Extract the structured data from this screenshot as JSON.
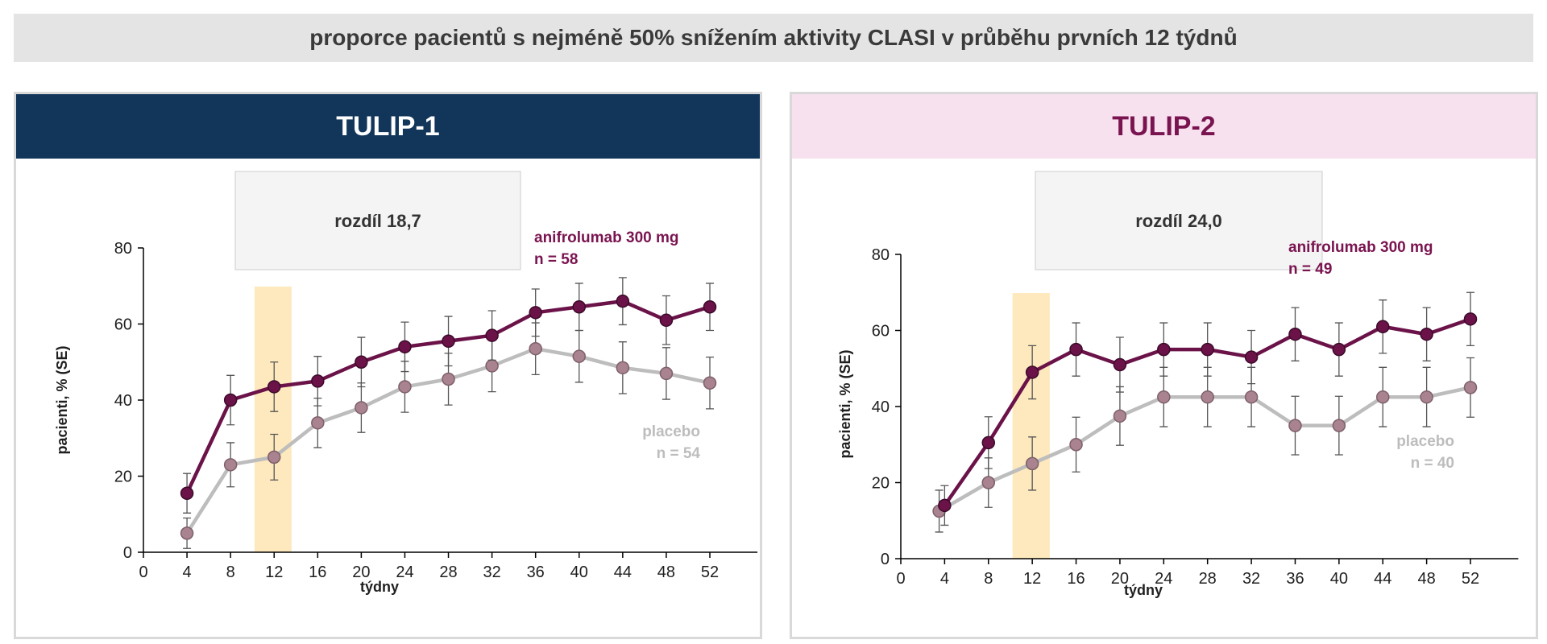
{
  "title": "proporce pacientů s nejméně 50% snížením aktivity CLASI v průběhu prvních 12 týdnů",
  "colors": {
    "drug": "#6b1349",
    "placebo": "#bdbdbd",
    "placebo_marker": "#a9838f",
    "highlight": "#fde9bd",
    "tulip1_header": "#12365a",
    "tulip2_header": "#f7e1ee",
    "tulip2_text": "#7a1450"
  },
  "chart_data": [
    {
      "type": "line",
      "title": "TULIP-1",
      "annotation": "rozdíl 18,7",
      "xlabel": "týdny",
      "ylabel": "pacienti, % (SE)",
      "xlim": [
        0,
        56
      ],
      "ylim": [
        0,
        80
      ],
      "xticks": [
        0,
        4,
        8,
        12,
        16,
        20,
        24,
        28,
        32,
        36,
        40,
        44,
        48,
        52
      ],
      "yticks": [
        0,
        20,
        40,
        60,
        80
      ],
      "highlight_range": [
        10.2,
        13.6
      ],
      "series": [
        {
          "name": "anifrolumab 300 mg",
          "n_label": "n = 58",
          "x": [
            4,
            8,
            12,
            16,
            20,
            24,
            28,
            32,
            36,
            40,
            44,
            48,
            52
          ],
          "values": [
            15.5,
            40,
            43.5,
            45,
            50,
            54,
            55.5,
            57,
            63,
            64.5,
            66,
            61,
            64.5
          ],
          "se": [
            5.2,
            6.5,
            6.5,
            6.5,
            6.5,
            6.5,
            6.5,
            6.5,
            6.2,
            6.2,
            6.2,
            6.4,
            6.2
          ]
        },
        {
          "name": "placebo",
          "n_label": "n = 54",
          "x": [
            4,
            8,
            12,
            16,
            20,
            24,
            28,
            32,
            36,
            40,
            44,
            48,
            52
          ],
          "values": [
            5,
            23,
            25,
            34,
            38,
            43.5,
            45.5,
            49,
            53.5,
            51.5,
            48.5,
            47,
            44.5
          ],
          "se": [
            4,
            5.8,
            6,
            6.5,
            6.5,
            6.7,
            6.8,
            6.8,
            6.8,
            6.8,
            6.8,
            6.8,
            6.8
          ]
        }
      ]
    },
    {
      "type": "line",
      "title": "TULIP-2",
      "annotation": "rozdíl 24,0",
      "xlabel": "týdny",
      "ylabel": "pacienti, % (SE)",
      "xlim": [
        0,
        56
      ],
      "ylim": [
        0,
        80
      ],
      "xticks": [
        0,
        4,
        8,
        12,
        16,
        20,
        24,
        28,
        32,
        36,
        40,
        44,
        48,
        52
      ],
      "yticks": [
        0,
        20,
        40,
        60,
        80
      ],
      "highlight_range": [
        10.2,
        13.6
      ],
      "series": [
        {
          "name": "anifrolumab 300 mg",
          "n_label": "n = 49",
          "x": [
            4,
            8,
            12,
            16,
            20,
            24,
            28,
            32,
            36,
            40,
            44,
            48,
            52
          ],
          "values": [
            14,
            30.5,
            49,
            55,
            51,
            55,
            55,
            53,
            59,
            55,
            61,
            59,
            63
          ],
          "se": [
            5.2,
            6.8,
            7,
            7,
            7.2,
            7,
            7,
            7,
            7,
            7,
            7,
            7,
            7
          ]
        },
        {
          "name": "placebo",
          "n_label": "n = 40",
          "x": [
            3.5,
            8,
            12,
            16,
            20,
            24,
            28,
            32,
            36,
            40,
            44,
            48,
            52
          ],
          "values": [
            12.5,
            20,
            25,
            30,
            37.5,
            42.5,
            42.5,
            42.5,
            35,
            35,
            42.5,
            42.5,
            45
          ],
          "se": [
            5.5,
            6.5,
            7,
            7.2,
            7.7,
            7.8,
            7.8,
            7.8,
            7.7,
            7.7,
            7.8,
            7.8,
            7.8
          ]
        }
      ]
    }
  ]
}
